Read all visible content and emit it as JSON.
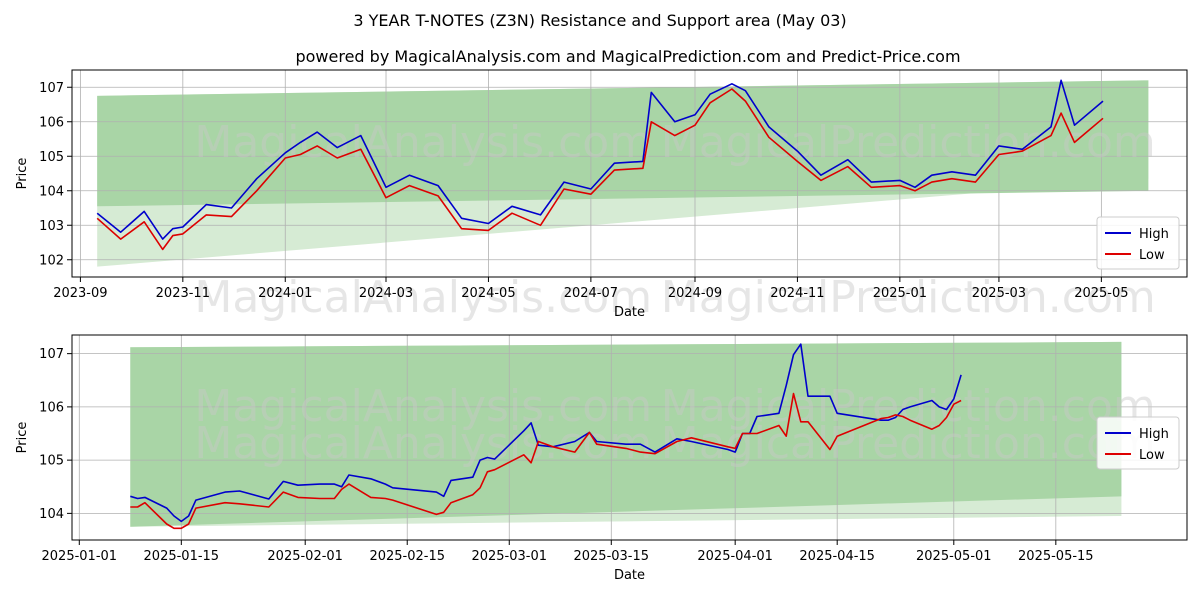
{
  "title": "3 YEAR T-NOTES (Z3N) Resistance and Support area (May 03)",
  "subtitle": "powered by MagicalAnalysis.com and MagicalPrediction.com and Predict-Price.com",
  "watermark_a": "MagicalAnalysis.com",
  "watermark_b": "MagicalPrediction.com",
  "colors": {
    "high": "#0000cc",
    "low": "#dd0000",
    "band_dark": "#a9d5a6",
    "band_light": "#d6ebd4",
    "grid": "#b0b0b0"
  },
  "chart_data": [
    {
      "type": "line",
      "xlabel": "Date",
      "ylabel": "Price",
      "legend": [
        "High",
        "Low"
      ],
      "legend_position": "lower-right",
      "grid": true,
      "xlim": [
        "2023-08-27",
        "2025-06-21"
      ],
      "ylim": [
        101.5,
        107.5
      ],
      "x_ticks": [
        "2023-09",
        "2023-11",
        "2024-01",
        "2024-03",
        "2024-05",
        "2024-07",
        "2024-09",
        "2024-11",
        "2025-01",
        "2025-03",
        "2025-05"
      ],
      "y_ticks": [
        102,
        103,
        104,
        105,
        106,
        107
      ],
      "bands": [
        {
          "name": "outer",
          "x_start": "2023-09-11",
          "x_end": "2025-05-29",
          "upper": [
            106.75,
            107.2
          ],
          "lower": [
            101.8,
            104.35
          ]
        },
        {
          "name": "inner",
          "x_start": "2023-09-11",
          "x_end": "2025-05-29",
          "upper": [
            106.75,
            107.2
          ],
          "lower": [
            103.55,
            104.0
          ]
        }
      ],
      "series": [
        {
          "name": "High",
          "x": [
            "2023-09-11",
            "2023-09-25",
            "2023-10-09",
            "2023-10-20",
            "2023-10-26",
            "2023-11-01",
            "2023-11-15",
            "2023-11-30",
            "2023-12-15",
            "2024-01-01",
            "2024-01-10",
            "2024-01-20",
            "2024-02-01",
            "2024-02-15",
            "2024-03-01",
            "2024-03-15",
            "2024-04-01",
            "2024-04-15",
            "2024-05-01",
            "2024-05-15",
            "2024-06-01",
            "2024-06-15",
            "2024-07-01",
            "2024-07-15",
            "2024-08-01",
            "2024-08-06",
            "2024-08-20",
            "2024-09-01",
            "2024-09-10",
            "2024-09-23",
            "2024-10-01",
            "2024-10-15",
            "2024-11-01",
            "2024-11-15",
            "2024-12-01",
            "2024-12-15",
            "2025-01-01",
            "2025-01-10",
            "2025-01-20",
            "2025-02-01",
            "2025-02-15",
            "2025-03-01",
            "2025-03-15",
            "2025-04-01",
            "2025-04-07",
            "2025-04-15",
            "2025-05-02"
          ],
          "values": [
            103.35,
            102.8,
            103.4,
            102.6,
            102.9,
            102.95,
            103.6,
            103.5,
            104.35,
            105.1,
            105.4,
            105.7,
            105.25,
            105.6,
            104.1,
            104.45,
            104.15,
            103.2,
            103.05,
            103.55,
            103.3,
            104.25,
            104.05,
            104.8,
            104.85,
            106.85,
            106.0,
            106.2,
            106.8,
            107.1,
            106.9,
            105.85,
            105.15,
            104.45,
            104.9,
            104.25,
            104.3,
            104.1,
            104.45,
            104.55,
            104.45,
            105.3,
            105.2,
            105.85,
            107.2,
            105.9,
            106.6
          ]
        },
        {
          "name": "Low",
          "x": [
            "2023-09-11",
            "2023-09-25",
            "2023-10-09",
            "2023-10-20",
            "2023-10-26",
            "2023-11-01",
            "2023-11-15",
            "2023-11-30",
            "2023-12-15",
            "2024-01-01",
            "2024-01-10",
            "2024-01-20",
            "2024-02-01",
            "2024-02-15",
            "2024-03-01",
            "2024-03-15",
            "2024-04-01",
            "2024-04-15",
            "2024-05-01",
            "2024-05-15",
            "2024-06-01",
            "2024-06-15",
            "2024-07-01",
            "2024-07-15",
            "2024-08-01",
            "2024-08-06",
            "2024-08-20",
            "2024-09-01",
            "2024-09-10",
            "2024-09-23",
            "2024-10-01",
            "2024-10-15",
            "2024-11-01",
            "2024-11-15",
            "2024-12-01",
            "2024-12-15",
            "2025-01-01",
            "2025-01-10",
            "2025-01-20",
            "2025-02-01",
            "2025-02-15",
            "2025-03-01",
            "2025-03-15",
            "2025-04-01",
            "2025-04-07",
            "2025-04-15",
            "2025-05-02"
          ],
          "values": [
            103.2,
            102.6,
            103.1,
            102.3,
            102.7,
            102.75,
            103.3,
            103.25,
            104.0,
            104.95,
            105.05,
            105.3,
            104.95,
            105.2,
            103.8,
            104.15,
            103.85,
            102.9,
            102.85,
            103.35,
            103.0,
            104.05,
            103.9,
            104.6,
            104.65,
            106.0,
            105.6,
            105.9,
            106.55,
            106.95,
            106.6,
            105.55,
            104.85,
            104.3,
            104.7,
            104.1,
            104.15,
            104.0,
            104.25,
            104.35,
            104.25,
            105.05,
            105.15,
            105.6,
            106.25,
            105.4,
            106.1
          ]
        }
      ]
    },
    {
      "type": "line",
      "xlabel": "Date",
      "ylabel": "Price",
      "legend": [
        "High",
        "Low"
      ],
      "legend_position": "right",
      "grid": true,
      "xlim": [
        "2024-12-31",
        "2025-06-02"
      ],
      "ylim": [
        103.5,
        107.35
      ],
      "x_ticks": [
        "2025-01-01",
        "2025-01-15",
        "2025-02-01",
        "2025-02-15",
        "2025-03-01",
        "2025-03-15",
        "2025-04-01",
        "2025-04-15",
        "2025-05-01",
        "2025-05-15"
      ],
      "y_ticks": [
        104,
        105,
        106,
        107
      ],
      "bands": [
        {
          "name": "outer",
          "x_start": "2025-01-08",
          "x_end": "2025-05-24",
          "upper": [
            107.12,
            107.22
          ],
          "lower": [
            103.75,
            103.95
          ]
        },
        {
          "name": "inner",
          "x_start": "2025-01-08",
          "x_end": "2025-05-24",
          "upper": [
            107.12,
            107.22
          ],
          "lower": [
            103.75,
            104.32
          ]
        }
      ],
      "series": [
        {
          "name": "High",
          "x": [
            "2025-01-08",
            "2025-01-09",
            "2025-01-10",
            "2025-01-13",
            "2025-01-14",
            "2025-01-15",
            "2025-01-16",
            "2025-01-17",
            "2025-01-21",
            "2025-01-23",
            "2025-01-27",
            "2025-01-29",
            "2025-01-31",
            "2025-02-03",
            "2025-02-05",
            "2025-02-06",
            "2025-02-07",
            "2025-02-10",
            "2025-02-12",
            "2025-02-13",
            "2025-02-19",
            "2025-02-20",
            "2025-02-21",
            "2025-02-24",
            "2025-02-25",
            "2025-02-26",
            "2025-02-27",
            "2025-03-03",
            "2025-03-04",
            "2025-03-05",
            "2025-03-07",
            "2025-03-10",
            "2025-03-12",
            "2025-03-13",
            "2025-03-17",
            "2025-03-19",
            "2025-03-21",
            "2025-03-24",
            "2025-03-26",
            "2025-03-31",
            "2025-04-01",
            "2025-04-02",
            "2025-04-03",
            "2025-04-04",
            "2025-04-07",
            "2025-04-08",
            "2025-04-09",
            "2025-04-10",
            "2025-04-11",
            "2025-04-14",
            "2025-04-15",
            "2025-04-21",
            "2025-04-22",
            "2025-04-23",
            "2025-04-24",
            "2025-04-25",
            "2025-04-28",
            "2025-04-29",
            "2025-04-30",
            "2025-05-01",
            "2025-05-02"
          ],
          "values": [
            104.32,
            104.28,
            104.3,
            104.1,
            103.95,
            103.85,
            103.95,
            104.25,
            104.4,
            104.42,
            104.27,
            104.6,
            104.53,
            104.55,
            104.55,
            104.5,
            104.72,
            104.65,
            104.55,
            104.48,
            104.4,
            104.32,
            104.62,
            104.68,
            105.0,
            105.05,
            105.02,
            105.55,
            105.7,
            105.28,
            105.25,
            105.35,
            105.52,
            105.35,
            105.3,
            105.3,
            105.15,
            105.4,
            105.35,
            105.2,
            105.15,
            105.5,
            105.5,
            105.82,
            105.88,
            106.4,
            106.98,
            107.18,
            106.2,
            106.2,
            105.88,
            105.75,
            105.75,
            105.8,
            105.95,
            106.0,
            106.12,
            106.0,
            105.95,
            106.15,
            106.6
          ]
        },
        {
          "name": "Low",
          "x": [
            "2025-01-08",
            "2025-01-09",
            "2025-01-10",
            "2025-01-13",
            "2025-01-14",
            "2025-01-15",
            "2025-01-16",
            "2025-01-17",
            "2025-01-21",
            "2025-01-23",
            "2025-01-27",
            "2025-01-29",
            "2025-01-31",
            "2025-02-03",
            "2025-02-05",
            "2025-02-06",
            "2025-02-07",
            "2025-02-10",
            "2025-02-12",
            "2025-02-13",
            "2025-02-19",
            "2025-02-20",
            "2025-02-21",
            "2025-02-24",
            "2025-02-25",
            "2025-02-26",
            "2025-02-27",
            "2025-03-03",
            "2025-03-04",
            "2025-03-05",
            "2025-03-07",
            "2025-03-10",
            "2025-03-12",
            "2025-03-13",
            "2025-03-17",
            "2025-03-19",
            "2025-03-21",
            "2025-03-24",
            "2025-03-26",
            "2025-03-31",
            "2025-04-01",
            "2025-04-02",
            "2025-04-03",
            "2025-04-04",
            "2025-04-07",
            "2025-04-08",
            "2025-04-09",
            "2025-04-10",
            "2025-04-11",
            "2025-04-14",
            "2025-04-15",
            "2025-04-21",
            "2025-04-22",
            "2025-04-23",
            "2025-04-24",
            "2025-04-25",
            "2025-04-28",
            "2025-04-29",
            "2025-04-30",
            "2025-05-01",
            "2025-05-02"
          ],
          "values": [
            104.12,
            104.12,
            104.2,
            103.8,
            103.72,
            103.72,
            103.8,
            104.1,
            104.2,
            104.18,
            104.12,
            104.4,
            104.3,
            104.28,
            104.28,
            104.45,
            104.55,
            104.3,
            104.28,
            104.25,
            103.98,
            104.02,
            104.2,
            104.35,
            104.48,
            104.78,
            104.82,
            105.1,
            104.95,
            105.35,
            105.25,
            105.15,
            105.52,
            105.3,
            105.22,
            105.15,
            105.12,
            105.35,
            105.42,
            105.25,
            105.22,
            105.5,
            105.5,
            105.5,
            105.65,
            105.45,
            106.25,
            105.72,
            105.72,
            105.2,
            105.45,
            105.78,
            105.8,
            105.85,
            105.82,
            105.75,
            105.58,
            105.65,
            105.8,
            106.05,
            106.12
          ]
        }
      ]
    }
  ]
}
